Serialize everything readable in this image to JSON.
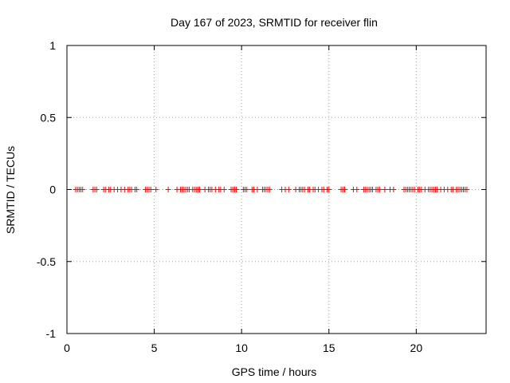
{
  "chart_data": {
    "type": "scatter",
    "title": "Day 167 of 2023, SRMTID for receiver flin",
    "xlabel": "GPS time / hours",
    "ylabel": "SRMTID / TECUs",
    "xlim": [
      0,
      24
    ],
    "ylim": [
      -1,
      1
    ],
    "grid": true,
    "marker": "plus",
    "marker_color": "#ff0000",
    "x_ticks": [
      0,
      5,
      10,
      15,
      20
    ],
    "x_tick_labels": [
      "0",
      "5",
      "10",
      "15",
      "20"
    ],
    "y_ticks": [
      1,
      0.5,
      0,
      -0.5,
      -1
    ],
    "y_tick_labels": [
      "1",
      "0.5",
      "0",
      "-0.5",
      "-1"
    ],
    "series": [
      {
        "values_y": 0,
        "x": [
          0.5,
          0.6,
          0.7,
          0.8,
          0.9,
          1.5,
          1.6,
          1.7,
          2.1,
          2.2,
          2.4,
          2.5,
          2.7,
          2.9,
          3.1,
          3.3,
          3.5,
          3.6,
          3.7,
          3.9,
          4.0,
          4.5,
          4.6,
          4.7,
          4.8,
          5.1,
          5.8,
          6.3,
          6.5,
          6.6,
          6.7,
          6.8,
          6.9,
          7.0,
          7.2,
          7.3,
          7.4,
          7.5,
          7.6,
          7.9,
          8.1,
          8.2,
          8.3,
          8.5,
          8.7,
          8.8,
          9.0,
          9.4,
          9.5,
          9.6,
          9.7,
          10.1,
          10.2,
          10.3,
          10.6,
          10.7,
          10.9,
          11.2,
          11.3,
          11.4,
          11.5,
          11.6,
          12.3,
          12.5,
          12.7,
          13.1,
          13.3,
          13.4,
          13.5,
          13.6,
          13.8,
          13.9,
          14.1,
          14.2,
          14.4,
          14.6,
          14.7,
          14.9,
          15.0,
          15.7,
          15.8,
          15.9,
          16.4,
          16.6,
          17.0,
          17.1,
          17.2,
          17.3,
          17.4,
          17.5,
          17.7,
          17.8,
          17.9,
          18.2,
          18.5,
          18.7,
          19.3,
          19.4,
          19.5,
          19.6,
          19.7,
          19.8,
          19.9,
          20.1,
          20.2,
          20.3,
          20.5,
          20.7,
          20.8,
          20.9,
          21.0,
          21.1,
          21.2,
          21.4,
          21.6,
          21.8,
          22.0,
          22.1,
          22.3,
          22.4,
          22.5,
          22.6,
          22.7,
          22.8,
          22.9
        ]
      }
    ]
  }
}
